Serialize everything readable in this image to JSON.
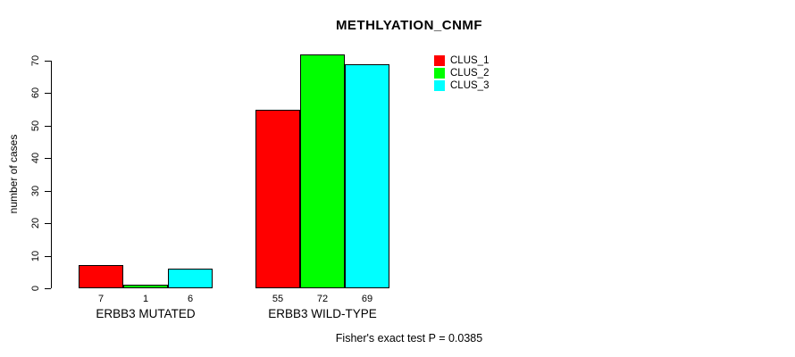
{
  "chart_data": {
    "type": "bar",
    "title": "METHLYATION_CNMF",
    "ylabel": "number of cases",
    "xlabel": "",
    "categories": [
      "ERBB3 MUTATED",
      "ERBB3 WILD-TYPE"
    ],
    "series": [
      {
        "name": "CLUS_1",
        "color": "#ff0000",
        "values": [
          7,
          55
        ]
      },
      {
        "name": "CLUS_2",
        "color": "#00ff00",
        "values": [
          1,
          72
        ]
      },
      {
        "name": "CLUS_3",
        "color": "#00ffff",
        "values": [
          6,
          69
        ]
      }
    ],
    "yticks": [
      0,
      10,
      20,
      30,
      40,
      50,
      60,
      70
    ],
    "ylim": [
      0,
      70
    ],
    "grid": false,
    "legend_position": "top-right",
    "bar_value_labels_shown": true,
    "annotation": "Fisher's exact test P = 0.0385",
    "bar_border_color": "#000000",
    "axis_color": "#000000",
    "text_color": "#000000",
    "background_color": "#ffffff"
  }
}
